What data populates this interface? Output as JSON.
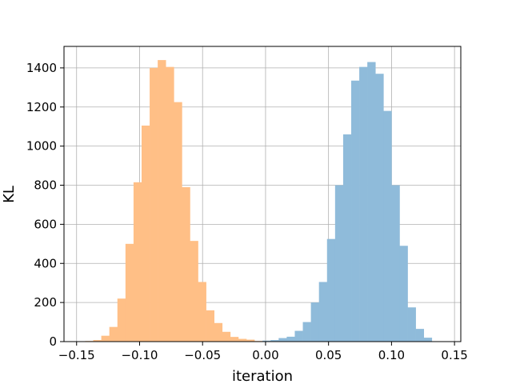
{
  "chart_data": {
    "type": "bar",
    "xlabel": "iteration",
    "ylabel": "KL",
    "xlim": [
      -0.16,
      0.155
    ],
    "ylim": [
      0,
      1510
    ],
    "grid": true,
    "bin_width": 0.0064,
    "x_ticks": [
      -0.15,
      -0.1,
      -0.05,
      0.0,
      0.05,
      0.1,
      0.15
    ],
    "x_tick_labels": [
      "−0.15",
      "−0.10",
      "−0.05",
      "0.00",
      "0.05",
      "0.10",
      "0.15"
    ],
    "y_ticks": [
      0,
      200,
      400,
      600,
      800,
      1000,
      1200,
      1400
    ],
    "y_tick_labels": [
      "0",
      "200",
      "400",
      "600",
      "800",
      "1000",
      "1200",
      "1400"
    ],
    "series": [
      {
        "color": "#ffbf86",
        "bin_start": -0.1496,
        "values": [
          1,
          3,
          8,
          30,
          75,
          220,
          500,
          815,
          1105,
          1400,
          1440,
          1405,
          1225,
          790,
          515,
          305,
          160,
          95,
          50,
          24,
          14,
          10,
          3,
          1
        ]
      },
      {
        "color": "#8fbbda",
        "bin_start": -0.0024,
        "values": [
          5,
          8,
          18,
          25,
          55,
          100,
          200,
          305,
          525,
          800,
          1060,
          1335,
          1405,
          1430,
          1370,
          1180,
          800,
          490,
          175,
          65,
          20,
          2
        ]
      }
    ]
  }
}
